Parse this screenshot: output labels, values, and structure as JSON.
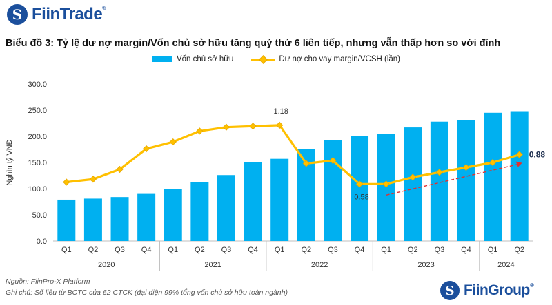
{
  "brand": {
    "top_logo": "FiinTrade",
    "top_logo_mark": "®",
    "bottom_logo": "FiinGroup",
    "bottom_logo_mark": "®",
    "logo_letter": "S"
  },
  "header": {
    "title": "Biểu đồ 3: Tỷ lệ dư nợ margin/Vốn chủ sở hữu tăng quý thứ 6 liên tiếp, nhưng vẫn thấp hơn so với đỉnh"
  },
  "footer": {
    "source": "Nguồn: FiinPro-X Platform",
    "note": "Ghi chú: Số liệu từ BCTC của 62 CTCK (đại diện 99% tổng vốn chủ sở hữu toàn ngành)"
  },
  "colors": {
    "bar": "#00b0f0",
    "line": "#ffc000",
    "line_marker_edge": "#e6a800",
    "trend": "#e03030",
    "brand": "#1b4f9c"
  },
  "chart_data": {
    "type": "bar+line",
    "title": "Biểu đồ 3: Tỷ lệ dư nợ margin/Vốn chủ sở hữu tăng quý thứ 6 liên tiếp, nhưng vẫn thấp hơn so với đỉnh",
    "ylabel": "Nghìn tỷ VNĐ",
    "ylim": [
      0,
      300
    ],
    "yticks": [
      "0.0",
      "50.0",
      "100.0",
      "150.0",
      "200.0",
      "250.0",
      "300.0"
    ],
    "categories": [
      "Q1",
      "Q2",
      "Q3",
      "Q4",
      "Q1",
      "Q2",
      "Q3",
      "Q4",
      "Q1",
      "Q2",
      "Q3",
      "Q4",
      "Q1",
      "Q2",
      "Q3",
      "Q4",
      "Q1",
      "Q2"
    ],
    "years": [
      {
        "label": "2020",
        "count": 4
      },
      {
        "label": "2021",
        "count": 4
      },
      {
        "label": "2022",
        "count": 4
      },
      {
        "label": "2023",
        "count": 4
      },
      {
        "label": "2024",
        "count": 2
      }
    ],
    "series": [
      {
        "name": "Vốn chủ sở hữu",
        "type": "bar",
        "values": [
          79,
          81,
          84,
          90,
          100,
          112,
          126,
          150,
          157,
          176,
          193,
          200,
          205,
          217,
          228,
          231,
          245,
          248
        ]
      },
      {
        "name": "Dư nợ cho vay margin/VCSH (lần)",
        "type": "line",
        "values": [
          0.6,
          0.63,
          0.73,
          0.94,
          1.01,
          1.12,
          1.16,
          1.17,
          1.18,
          0.79,
          0.82,
          0.58,
          0.58,
          0.65,
          0.7,
          0.75,
          0.8,
          0.88
        ]
      }
    ],
    "annotations": [
      {
        "index": 8,
        "label": "1.18"
      },
      {
        "index": 11,
        "label": "0.58"
      },
      {
        "index": 17,
        "label": "0.88"
      }
    ],
    "trend_arrow": {
      "from_index": 12,
      "to_index": 17,
      "style": "dashed"
    }
  }
}
